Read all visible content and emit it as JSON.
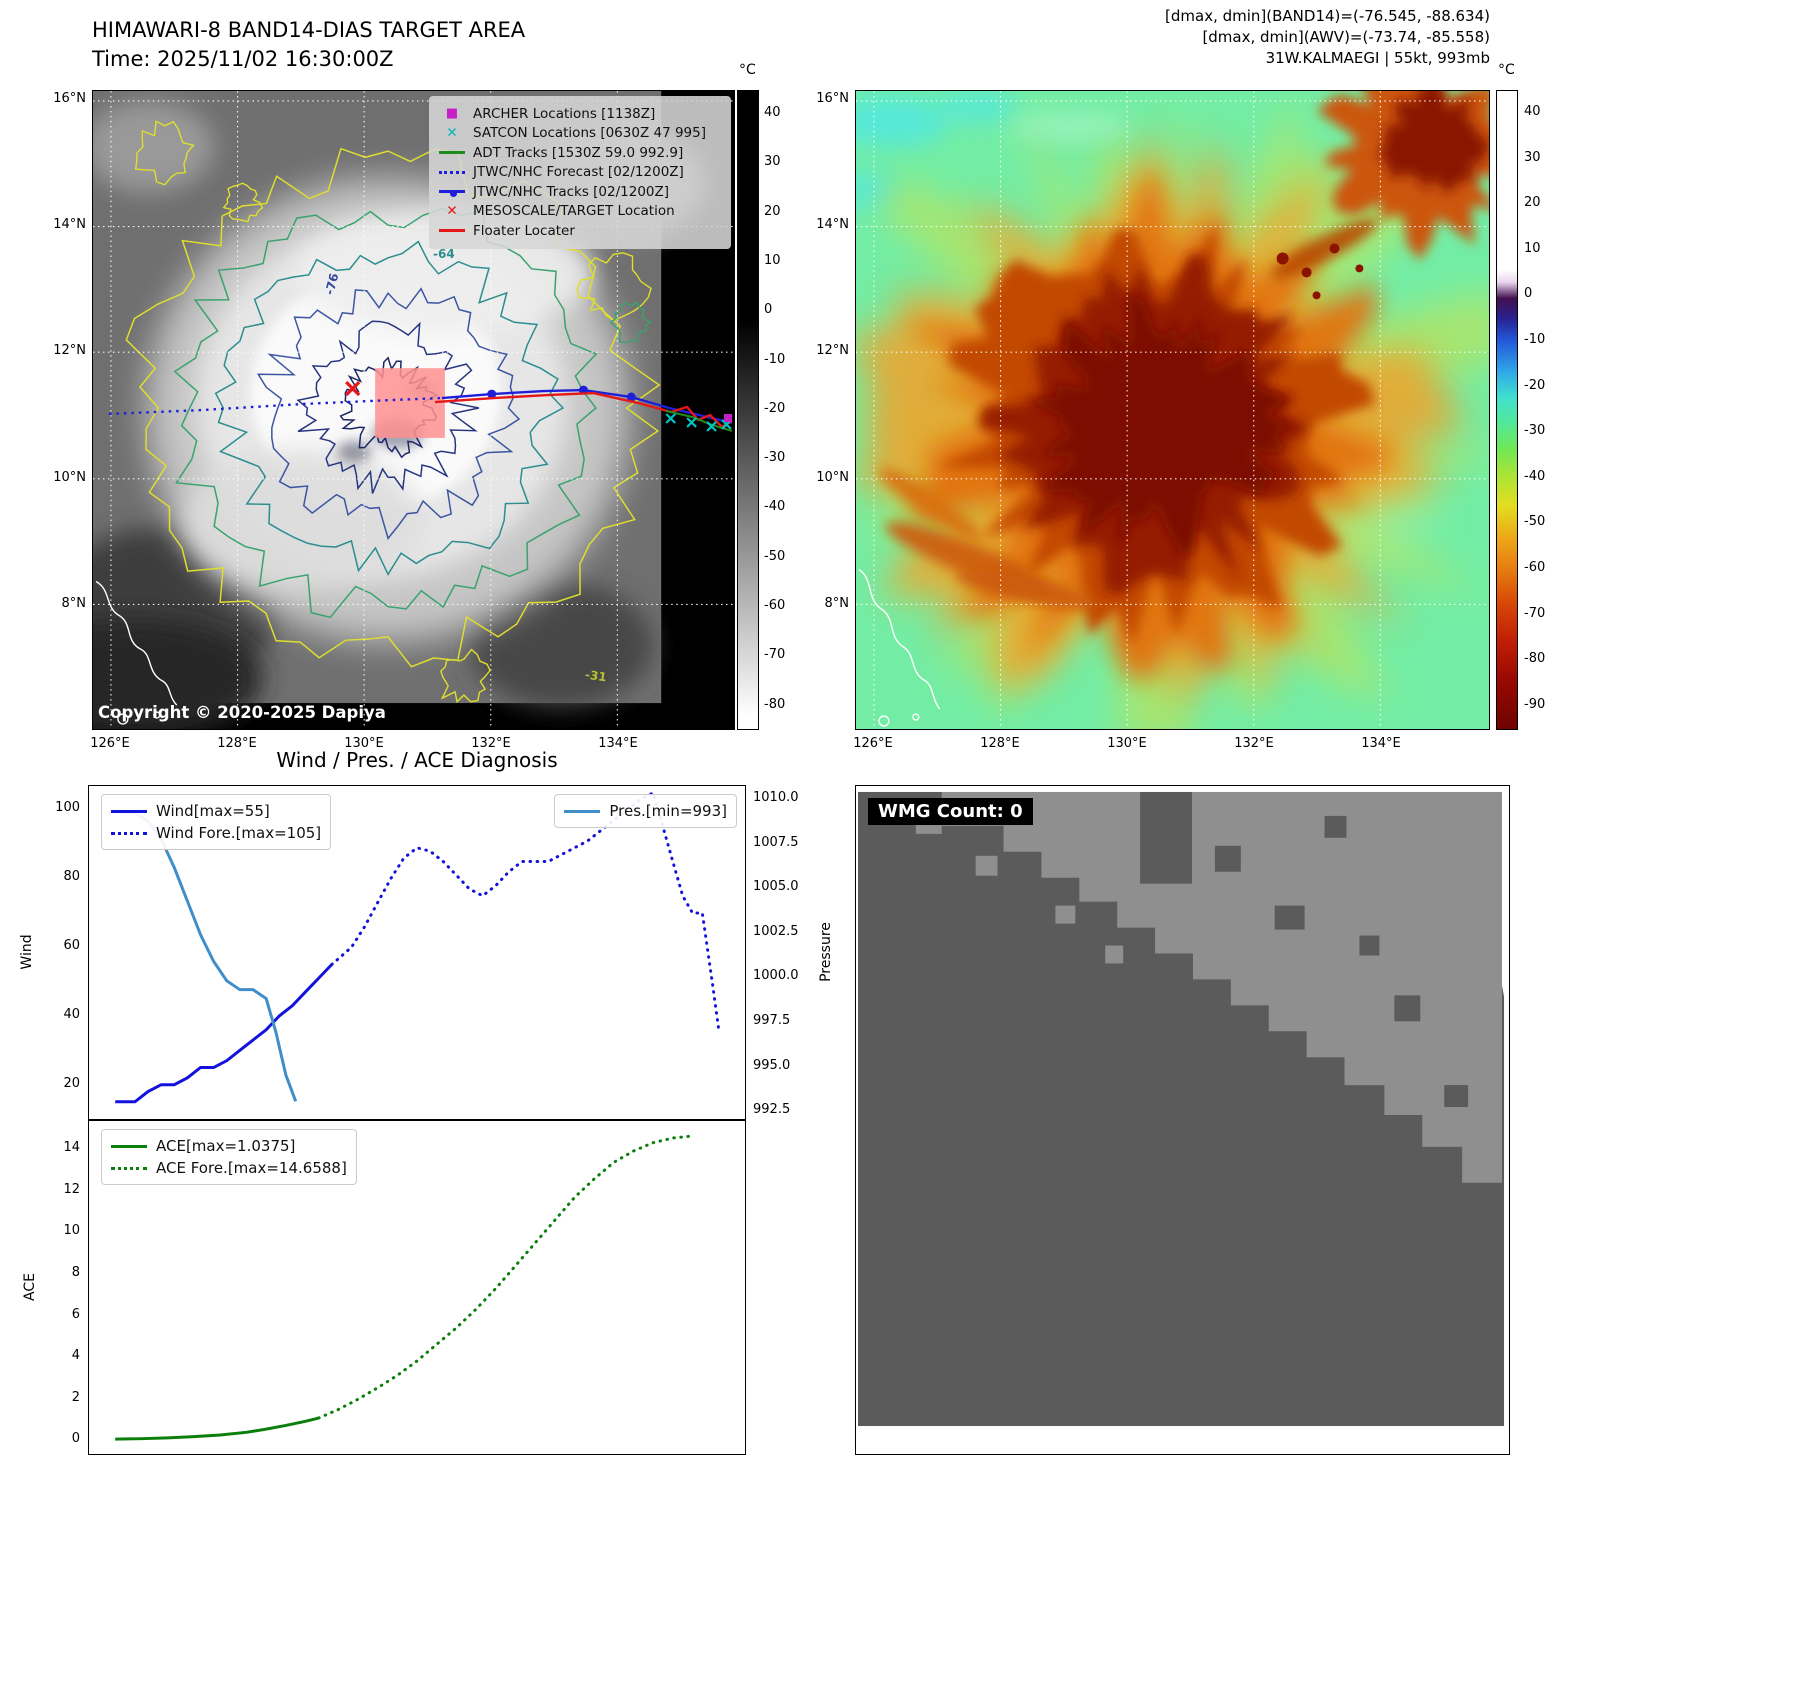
{
  "top_left": {
    "title": "HIMAWARI-8 BAND14-DIAS TARGET AREA",
    "subtitle": "Time: 2025/11/02 16:30:00Z",
    "copyright": "Copyright © 2020-2025 Dapiya",
    "lat_ticks": [
      "16°N",
      "14°N",
      "12°N",
      "10°N",
      "8°N"
    ],
    "lon_ticks": [
      "126°E",
      "128°E",
      "130°E",
      "132°E",
      "134°E"
    ],
    "colorbar_unit": "°C",
    "colorbar_ticks": [
      "40",
      "30",
      "20",
      "10",
      "0",
      "-10",
      "-20",
      "-30",
      "-40",
      "-50",
      "-60",
      "-70",
      "-80"
    ],
    "contour_labels": [
      "-64",
      "-76",
      "-31"
    ],
    "legend": [
      {
        "label": "ARCHER Locations [1138Z]",
        "marker": "magenta-square"
      },
      {
        "label": "SATCON Locations [0630Z 47 995]",
        "marker": "cyan-x"
      },
      {
        "label": "ADT Tracks [1530Z 59.0 992.9]",
        "marker": "green-line"
      },
      {
        "label": "JTWC/NHC Forecast [02/1200Z]",
        "marker": "blue-dotted-line"
      },
      {
        "label": "JTWC/NHC Tracks [02/1200Z]",
        "marker": "blue-line-marker"
      },
      {
        "label": "MESOSCALE/TARGET Location",
        "marker": "red-x"
      },
      {
        "label": "Floater Locater",
        "marker": "red-line"
      }
    ]
  },
  "top_right": {
    "header_line1": "[dmax, dmin](BAND14)=(-76.545, -88.634)",
    "header_line2": "[dmax, dmin](AWV)=(-73.74, -85.558)",
    "header_line3": "31W.KALMAEGI | 55kt, 993mb",
    "lat_ticks": [
      "16°N",
      "14°N",
      "12°N",
      "10°N",
      "8°N"
    ],
    "lon_ticks": [
      "126°E",
      "128°E",
      "130°E",
      "132°E",
      "134°E"
    ],
    "colorbar_unit": "°C",
    "colorbar_ticks": [
      "40",
      "30",
      "20",
      "10",
      "0",
      "-10",
      "-20",
      "-30",
      "-40",
      "-50",
      "-60",
      "-70",
      "-80",
      "-90"
    ]
  },
  "bottom_left": {
    "title": "Wind / Pres. / ACE Diagnosis"
  },
  "bottom_right": {
    "wmg_label": "WMG Count: 0"
  },
  "chart_data": [
    {
      "type": "line",
      "title": "Wind / Pres. / ACE Diagnosis",
      "x_range": [
        0,
        100
      ],
      "grid": false,
      "legend_position": "upper-left and upper-right",
      "left_axis": {
        "label": "Wind",
        "range": [
          10,
          107
        ],
        "tick_values": [
          20,
          40,
          60,
          80,
          100
        ],
        "tick_labels": [
          "20",
          "40",
          "60",
          "80",
          "100"
        ]
      },
      "right_axis": {
        "label": "Pressure",
        "range": [
          992.0,
          1010.8
        ],
        "tick_values": [
          992.5,
          995.0,
          997.5,
          1000.0,
          1002.5,
          1005.0,
          1007.5,
          1010.0
        ],
        "tick_labels": [
          "992.5",
          "995.0",
          "997.5",
          "1000.0",
          "1002.5",
          "1005.0",
          "1007.5",
          "1010.0"
        ]
      },
      "series": [
        {
          "name": "Wind[max=55]",
          "axis": "left",
          "style": "solid",
          "color": "#1212dc",
          "x": [
            4,
            7,
            9,
            11,
            13,
            15,
            17,
            19,
            21,
            23,
            25,
            27,
            29,
            31,
            33,
            35,
            37
          ],
          "y": [
            15,
            15,
            18,
            20,
            20,
            22,
            25,
            25,
            27,
            30,
            33,
            36,
            40,
            43,
            47,
            51,
            55
          ]
        },
        {
          "name": "Wind Fore.[max=105]",
          "axis": "left",
          "style": "dotted",
          "color": "#1212dc",
          "x": [
            37,
            40,
            42,
            44,
            46,
            48,
            50,
            52,
            54,
            56,
            58,
            60,
            62,
            64,
            66,
            68,
            70,
            72,
            74,
            76,
            78,
            80,
            82,
            84,
            86,
            87.5,
            89,
            90.5,
            92,
            93.5,
            95,
            96
          ],
          "y": [
            55,
            60,
            66,
            73,
            80,
            86,
            89,
            88,
            85,
            81,
            77,
            75,
            78,
            82,
            85,
            85,
            85,
            87,
            89,
            91,
            94,
            97,
            100,
            103,
            105,
            95,
            85,
            75,
            70,
            70,
            50,
            36
          ]
        },
        {
          "name": "Pres.[min=993]",
          "axis": "right",
          "style": "solid",
          "color": "#3f8ec9",
          "x": [
            4,
            7,
            9,
            11,
            13,
            15,
            17,
            19,
            21,
            23,
            25,
            27,
            28.5,
            30,
            31.5
          ],
          "y": [
            1009.3,
            1009.3,
            1008.8,
            1007.8,
            1006.2,
            1004.3,
            1002.4,
            1000.9,
            999.8,
            999.3,
            999.3,
            998.8,
            996.9,
            994.5,
            993.0
          ]
        }
      ]
    },
    {
      "type": "line",
      "x_range": [
        0,
        100
      ],
      "grid": false,
      "legend_position": "upper-left",
      "left_axis": {
        "label": "ACE",
        "range": [
          -0.7,
          15.4
        ],
        "tick_values": [
          0,
          2,
          4,
          6,
          8,
          10,
          12,
          14
        ],
        "tick_labels": [
          "0",
          "2",
          "4",
          "6",
          "8",
          "10",
          "12",
          "14"
        ]
      },
      "series": [
        {
          "name": "ACE[max=1.0375]",
          "axis": "left",
          "style": "solid",
          "color": "#0b7f0b",
          "x": [
            4,
            8,
            12,
            16,
            20,
            24,
            27,
            30,
            33,
            35
          ],
          "y": [
            0.02,
            0.04,
            0.08,
            0.14,
            0.22,
            0.35,
            0.5,
            0.68,
            0.88,
            1.0375
          ]
        },
        {
          "name": "ACE Fore.[max=14.6588]",
          "axis": "left",
          "style": "dotted",
          "color": "#0b7f0b",
          "x": [
            35,
            38,
            41,
            44,
            47,
            50,
            53,
            56,
            59,
            62,
            65,
            68,
            71,
            74,
            77,
            80,
            83,
            86,
            89,
            91.5
          ],
          "y": [
            1.04,
            1.45,
            1.95,
            2.5,
            3.1,
            3.8,
            4.6,
            5.4,
            6.3,
            7.3,
            8.4,
            9.5,
            10.6,
            11.7,
            12.6,
            13.4,
            13.95,
            14.35,
            14.58,
            14.6588
          ]
        }
      ]
    }
  ]
}
